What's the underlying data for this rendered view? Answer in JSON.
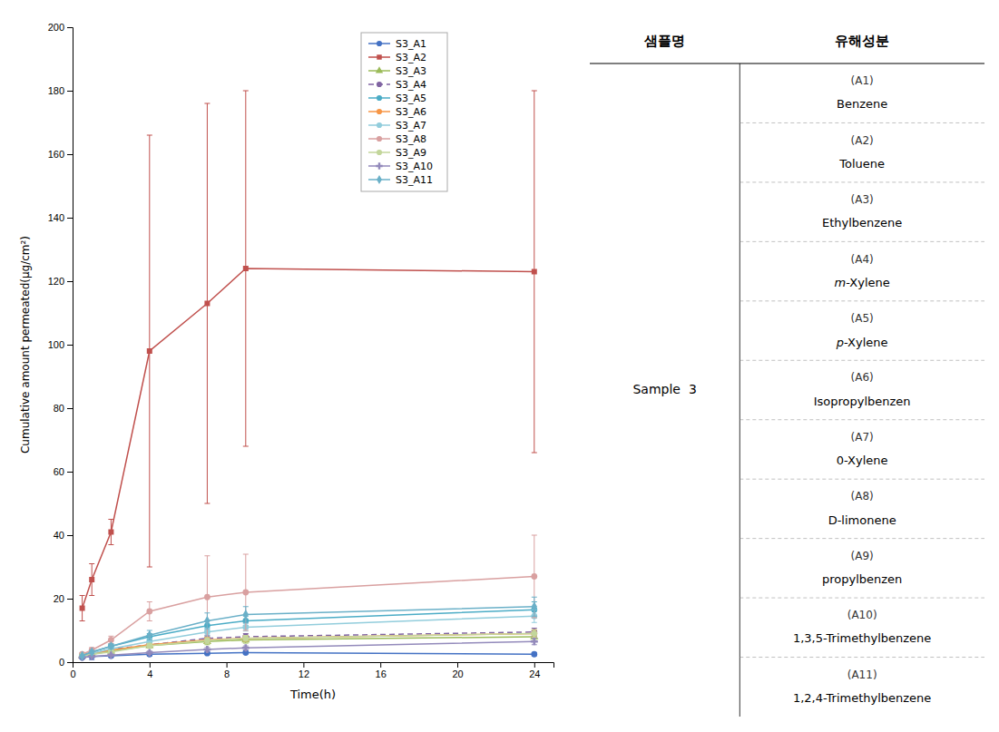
{
  "chart_data": {
    "type": "line",
    "xlabel": "Time(h)",
    "ylabel": "Cumulative amount permeated(μg/cm²)",
    "x": [
      0.5,
      1,
      2,
      4,
      7,
      9,
      24
    ],
    "series": [
      {
        "name": "S3_A1",
        "color": "#4472C4",
        "marker": "circle",
        "line_style": "solid",
        "values": [
          1.5,
          1.8,
          2.0,
          2.5,
          2.8,
          3.0,
          2.5
        ],
        "yerr": [
          0.5,
          1.0,
          0.5,
          0.5,
          0.4,
          0.4,
          0.5
        ]
      },
      {
        "name": "S3_A2",
        "color": "#C0504D",
        "marker": "square",
        "line_style": "solid",
        "values": [
          17,
          26,
          41,
          98,
          113,
          124,
          123
        ],
        "yerr": [
          4,
          5,
          4,
          68,
          63,
          56,
          57
        ]
      },
      {
        "name": "S3_A3",
        "color": "#9BBB59",
        "marker": "triangle",
        "line_style": "solid",
        "values": [
          2.0,
          2.5,
          3.5,
          5.2,
          6.5,
          7.0,
          8.0
        ],
        "yerr": [
          0.3,
          0.4,
          0.5,
          0.8,
          1.0,
          1.0,
          1.2
        ]
      },
      {
        "name": "S3_A4",
        "color": "#8064A2",
        "marker": "circle",
        "line_style": "dashed",
        "values": [
          2.0,
          2.8,
          4.0,
          5.5,
          7.5,
          8.0,
          9.5
        ],
        "yerr": [
          0.3,
          0.4,
          0.5,
          0.8,
          1.0,
          1.0,
          1.2
        ]
      },
      {
        "name": "S3_A5",
        "color": "#4BACC6",
        "marker": "circle",
        "line_style": "solid",
        "values": [
          2.2,
          3.2,
          5.0,
          8.0,
          11.5,
          13.0,
          16.5
        ],
        "yerr": [
          0.3,
          0.4,
          0.6,
          1.0,
          1.5,
          1.5,
          2.5
        ]
      },
      {
        "name": "S3_A6",
        "color": "#F79646",
        "marker": "circle",
        "line_style": "solid",
        "values": [
          2.0,
          2.8,
          3.8,
          5.5,
          7.0,
          7.5,
          9.0
        ],
        "yerr": [
          0.3,
          0.4,
          0.5,
          0.7,
          0.9,
          0.9,
          1.2
        ]
      },
      {
        "name": "S3_A7",
        "color": "#92CDDC",
        "marker": "circle",
        "line_style": "solid",
        "values": [
          2.0,
          2.8,
          4.2,
          6.5,
          9.5,
          11.0,
          14.5
        ],
        "yerr": [
          0.3,
          0.4,
          0.5,
          0.9,
          1.2,
          1.2,
          2.0
        ]
      },
      {
        "name": "S3_A8",
        "color": "#D9A0A0",
        "marker": "circle",
        "line_style": "solid",
        "values": [
          2.5,
          3.8,
          7.0,
          16.0,
          20.5,
          22.0,
          27.0
        ],
        "yerr": [
          0.5,
          0.8,
          1.2,
          3.0,
          13.0,
          12.0,
          13.0
        ]
      },
      {
        "name": "S3_A9",
        "color": "#C3D69B",
        "marker": "circle",
        "line_style": "solid",
        "values": [
          2.0,
          2.5,
          3.2,
          5.2,
          6.8,
          7.5,
          9.0
        ],
        "yerr": [
          0.3,
          0.4,
          0.4,
          0.7,
          0.9,
          0.9,
          1.2
        ]
      },
      {
        "name": "S3_A10",
        "color": "#938ABB",
        "marker": "plus",
        "line_style": "solid",
        "values": [
          1.5,
          1.8,
          2.2,
          3.0,
          4.0,
          4.5,
          6.5
        ],
        "yerr": [
          0.3,
          0.4,
          0.4,
          0.5,
          0.6,
          0.6,
          1.0
        ]
      },
      {
        "name": "S3_A11",
        "color": "#6AB0C8",
        "marker": "diamond",
        "line_style": "solid",
        "values": [
          2.0,
          3.2,
          5.0,
          8.5,
          13.0,
          15.0,
          17.5
        ],
        "yerr": [
          0.3,
          0.5,
          0.8,
          1.5,
          2.5,
          2.5,
          3.0
        ]
      }
    ],
    "xlim": [
      0,
      25
    ],
    "ylim": [
      0,
      200
    ],
    "xticks": [
      0,
      4,
      8,
      12,
      16,
      20,
      24
    ],
    "yticks": [
      0,
      20,
      40,
      60,
      80,
      100,
      120,
      140,
      160,
      180,
      200
    ],
    "grid": false,
    "legend": "upper right",
    "table": {
      "columns": [
        "샘플명",
        "유해성분"
      ],
      "sample": "Sample  3",
      "rows": [
        [
          "(A1)",
          "Benzene"
        ],
        [
          "(A2)",
          "Toluene"
        ],
        [
          "(A3)",
          "Ethylbenzene"
        ],
        [
          "(A4)",
          "m-Xylene"
        ],
        [
          "(A5)",
          "p-Xylene"
        ],
        [
          "(A6)",
          "Isopropylbenzen"
        ],
        [
          "(A7)",
          "0-Xylene"
        ],
        [
          "(A8)",
          "D-limonene"
        ],
        [
          "(A9)",
          "propylbenzen"
        ],
        [
          "(A10)",
          "1,3,5-Trimethylbenzene"
        ],
        [
          "(A11)",
          "1,2,4-Trimethylbenzene"
        ]
      ]
    }
  }
}
